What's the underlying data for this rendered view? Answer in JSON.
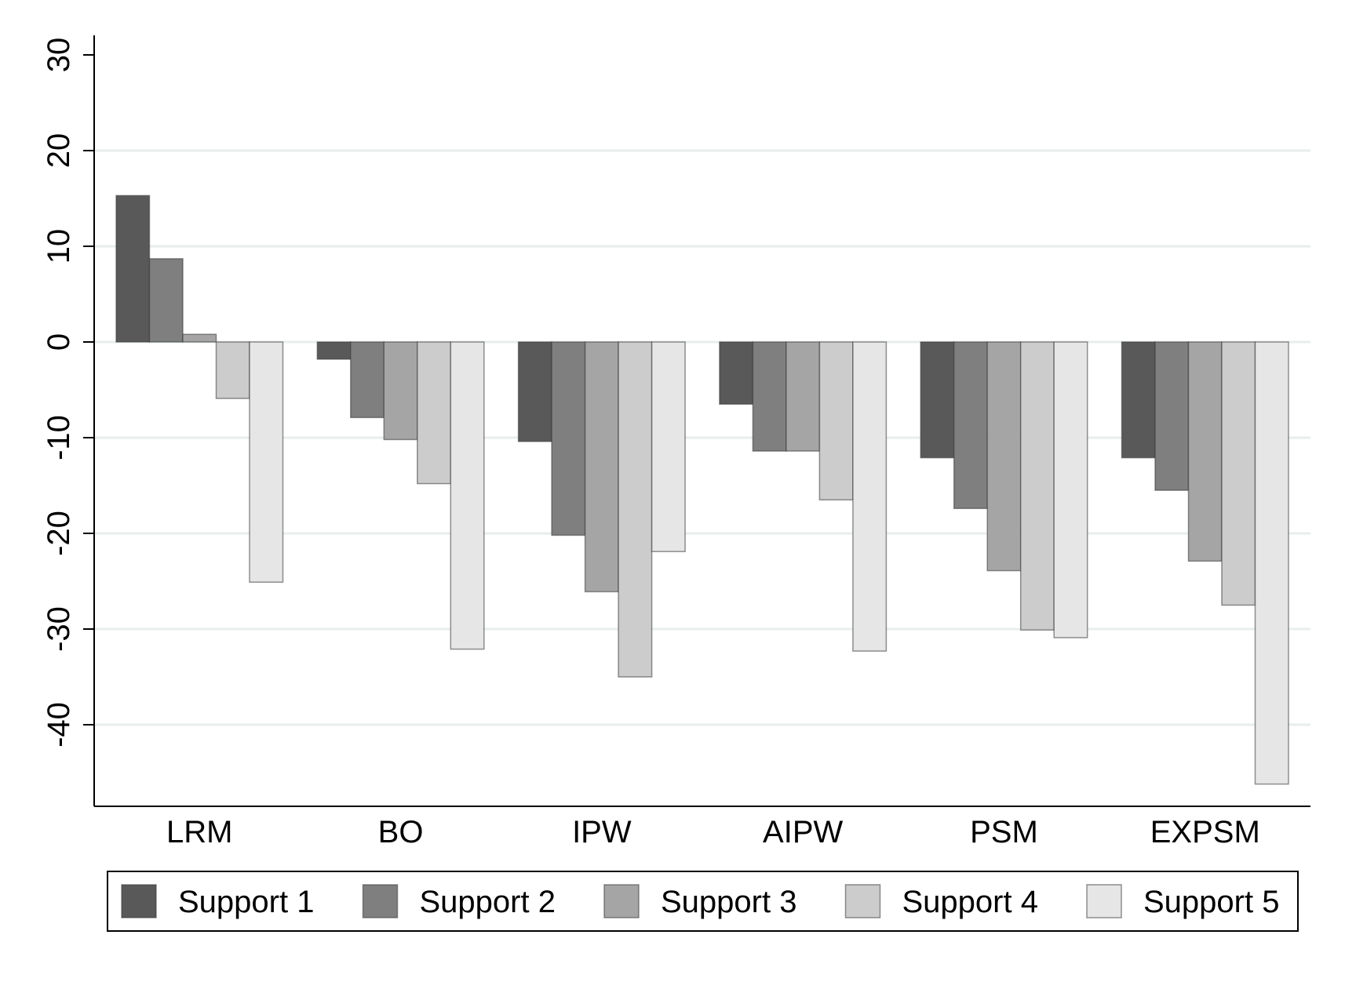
{
  "chart_data": {
    "type": "bar",
    "title": "",
    "xlabel": "",
    "ylabel": "",
    "categories": [
      "LRM",
      "BO",
      "IPW",
      "AIPW",
      "PSM",
      "EXPSM"
    ],
    "yticks": [
      -40,
      -30,
      -20,
      -10,
      0,
      10,
      20,
      30
    ],
    "ylim": [
      -48.5,
      32
    ],
    "grid": true,
    "legend_position": "bottom",
    "series": [
      {
        "name": "Support 1",
        "color": "#595959",
        "values": [
          15.3,
          -1.8,
          -10.4,
          -6.5,
          -12.1,
          -12.1
        ]
      },
      {
        "name": "Support 2",
        "color": "#7f7f7f",
        "values": [
          8.7,
          -7.9,
          -20.2,
          -11.4,
          -17.4,
          -15.5
        ]
      },
      {
        "name": "Support 3",
        "color": "#a5a5a5",
        "values": [
          0.8,
          -10.2,
          -26.1,
          -11.4,
          -23.9,
          -22.9
        ]
      },
      {
        "name": "Support 4",
        "color": "#cccccc",
        "values": [
          -5.9,
          -14.8,
          -35.0,
          -16.5,
          -30.1,
          -27.5
        ]
      },
      {
        "name": "Support 5",
        "color": "#e6e6e6",
        "values": [
          -25.1,
          -32.1,
          -21.9,
          -32.3,
          -30.9,
          -46.2
        ]
      }
    ]
  }
}
